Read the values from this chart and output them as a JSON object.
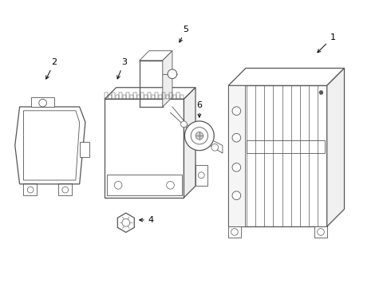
{
  "background_color": "#ffffff",
  "line_color": "#555555",
  "label_color": "#000000",
  "fig_width": 4.9,
  "fig_height": 3.6,
  "dpi": 100,
  "label_positions": {
    "1": [
      0.84,
      0.835,
      0.815,
      0.775
    ],
    "2": [
      0.155,
      0.735,
      0.13,
      0.695
    ],
    "3": [
      0.335,
      0.735,
      0.315,
      0.695
    ],
    "4": [
      0.4,
      0.215,
      0.355,
      0.215
    ],
    "5": [
      0.475,
      0.855,
      0.455,
      0.815
    ],
    "6": [
      0.585,
      0.63,
      0.585,
      0.575
    ]
  }
}
